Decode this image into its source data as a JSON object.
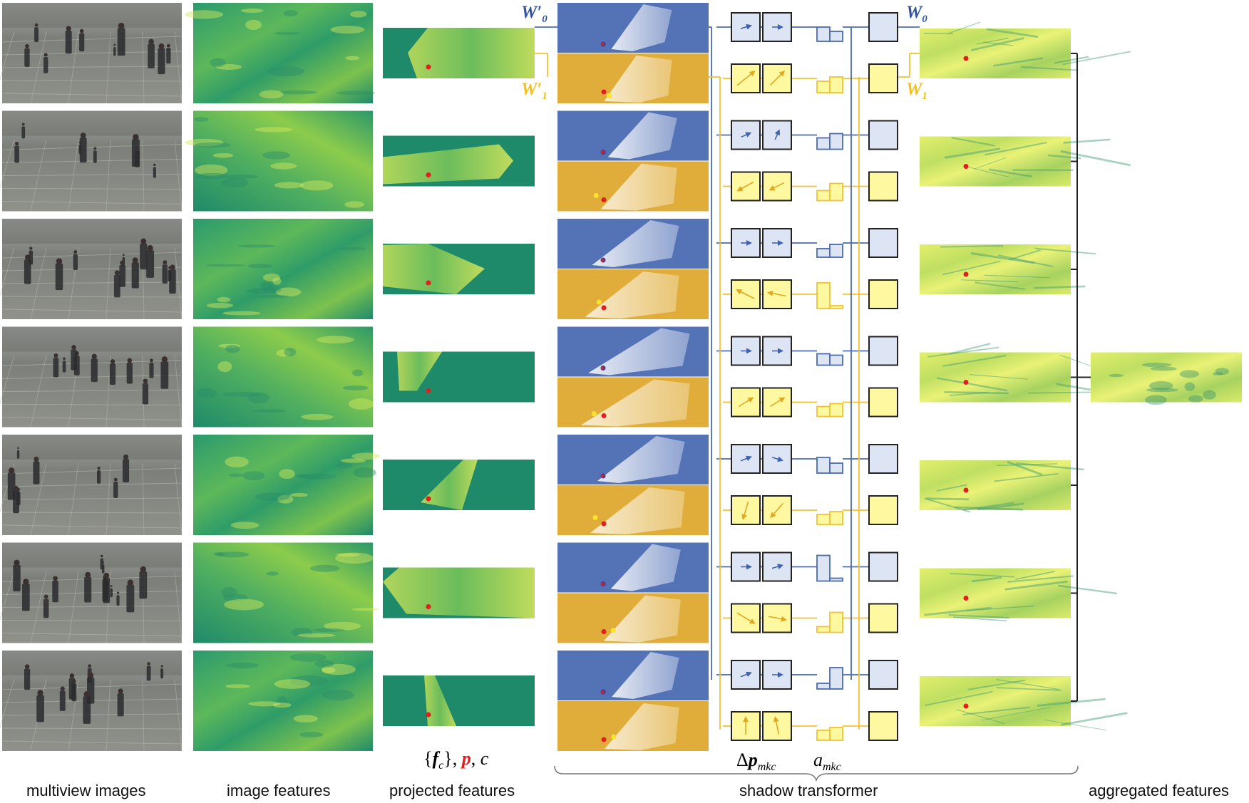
{
  "labels": {
    "multiview_images": "multiview images",
    "image_features": "image features",
    "projected_features": "projected features",
    "shadow_transformer": "shadow transformer",
    "aggregated_features": "aggregated features"
  },
  "math": {
    "projected_open": "{",
    "projected_f": "f",
    "projected_c_sub": "c",
    "projected_close": "},",
    "projected_p": "p",
    "projected_sep": ",",
    "projected_c": "c",
    "delta_p": "Δ",
    "delta_p_bold": "p",
    "delta_p_sub": "mkc",
    "a": "a",
    "a_sub": "mkc",
    "w_prime_0_w": "W",
    "w_prime_0_prime": "′",
    "w_prime_0_sub": "0",
    "w_prime_1_w": "W",
    "w_prime_1_prime": "′",
    "w_prime_1_sub": "1",
    "w0_w": "W",
    "w0_sub": "0",
    "w1_w": "W",
    "w1_sub": "1"
  },
  "colors": {
    "blue": "#5473b7",
    "blue_light": "#dde4f3",
    "blue_line": "#4a6bb3",
    "yellow": "#e0ad3a",
    "yellow_light": "#fef9a1",
    "yellow_line": "#f1c232",
    "feature_green": "#1e8a6a",
    "feature_light": "#d9e85a",
    "red_point": "#e02020",
    "photo_ground": "#8e8e86"
  },
  "views": [
    {
      "view": 1,
      "blue_arrows": [
        [
          1,
          -0.3
        ],
        [
          1,
          0
        ]
      ],
      "yellow_arrows": [
        [
          1,
          -0.8
        ],
        [
          0.8,
          -0.8
        ]
      ],
      "blue_attn": [
        0.5,
        0.35
      ],
      "yellow_attn": [
        0.4,
        0.55
      ]
    },
    {
      "view": 2,
      "blue_arrows": [
        [
          0.9,
          -0.4
        ],
        [
          0.4,
          -0.9
        ]
      ],
      "yellow_arrows": [
        [
          -0.9,
          0.5
        ],
        [
          -0.8,
          0.4
        ]
      ],
      "blue_attn": [
        0.4,
        0.55
      ],
      "yellow_attn": [
        0.35,
        0.6
      ]
    },
    {
      "view": 3,
      "blue_arrows": [
        [
          1,
          0
        ],
        [
          1,
          0
        ]
      ],
      "yellow_arrows": [
        [
          -1,
          -0.5
        ],
        [
          -1,
          -0.2
        ]
      ],
      "blue_attn": [
        0.3,
        0.45
      ],
      "yellow_attn": [
        0.9,
        0.1
      ]
    },
    {
      "view": 4,
      "blue_arrows": [
        [
          1,
          0
        ],
        [
          1,
          0
        ]
      ],
      "yellow_arrows": [
        [
          0.8,
          -0.5
        ],
        [
          0.8,
          -0.5
        ]
      ],
      "blue_attn": [
        0.4,
        0.35
      ],
      "yellow_attn": [
        0.35,
        0.45
      ]
    },
    {
      "view": 5,
      "blue_arrows": [
        [
          1,
          -0.4
        ],
        [
          1,
          0.3
        ]
      ],
      "yellow_arrows": [
        [
          -0.3,
          1
        ],
        [
          -0.7,
          0.8
        ]
      ],
      "blue_attn": [
        0.55,
        0.35
      ],
      "yellow_attn": [
        0.35,
        0.45
      ]
    },
    {
      "view": 6,
      "blue_arrows": [
        [
          1,
          0
        ],
        [
          1,
          -0.3
        ]
      ],
      "yellow_arrows": [
        [
          1,
          0.6
        ],
        [
          1,
          0.2
        ]
      ],
      "blue_attn": [
        0.9,
        0.1
      ],
      "yellow_attn": [
        0.2,
        0.7
      ]
    },
    {
      "view": 7,
      "blue_arrows": [
        [
          1,
          -0.4
        ],
        [
          1,
          0
        ]
      ],
      "yellow_arrows": [
        [
          0,
          -1
        ],
        [
          -0.2,
          -1
        ]
      ],
      "blue_attn": [
        0.2,
        0.75
      ],
      "yellow_attn": [
        0.35,
        0.45
      ]
    }
  ]
}
